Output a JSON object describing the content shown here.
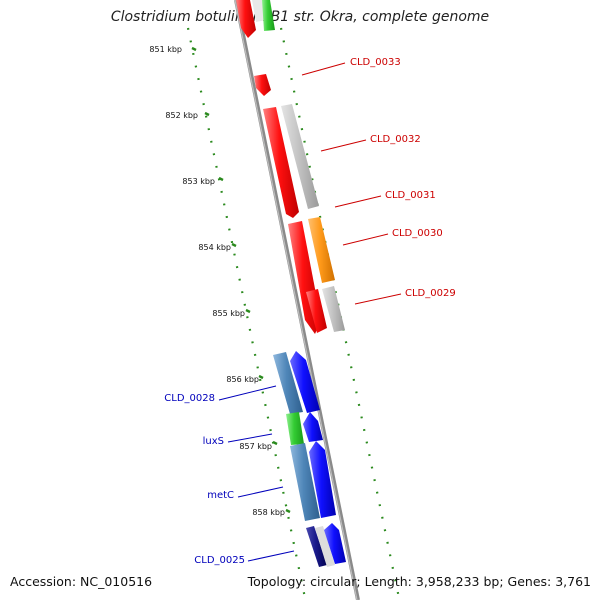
{
  "map": {
    "title": "Clostridium botulinum B1 str. Okra, complete genome",
    "accession": "Accession: NC_010516",
    "summary": "Topology: circular; Length: 3,958,233 bp; Genes: 3,761"
  },
  "colors": {
    "backbone": "#8a8a8a",
    "ruler": "#2b8a1e",
    "label_right": "#cc0000",
    "label_left": "#0000bb"
  },
  "ruler": {
    "ticks": [
      "851 kbp",
      "852 kbp",
      "853 kbp",
      "854 kbp",
      "855 kbp",
      "856 kbp",
      "857 kbp",
      "858 kbp"
    ]
  },
  "genes": [
    {
      "name": "CLD_0033",
      "color": "#ff1a1a",
      "side": "right"
    },
    {
      "name": "CLD_0032",
      "color": "#ff1a1a",
      "side": "right"
    },
    {
      "name": "CLD_0031",
      "color": "#ff1a1a",
      "side": "right"
    },
    {
      "name": "CLD_0030",
      "color": "#ff9a1a",
      "side": "right"
    },
    {
      "name": "CLD_0029",
      "color": "#ff1a1a",
      "side": "right"
    },
    {
      "name": "CLD_0028",
      "color": "#4f86b8",
      "side": "left"
    },
    {
      "name": "luxS",
      "color": "#44d444",
      "side": "left"
    },
    {
      "name": "metC",
      "color": "#4f86b8",
      "side": "left"
    },
    {
      "name": "CLD_0025",
      "color": "#1a1a8c",
      "side": "left"
    }
  ]
}
